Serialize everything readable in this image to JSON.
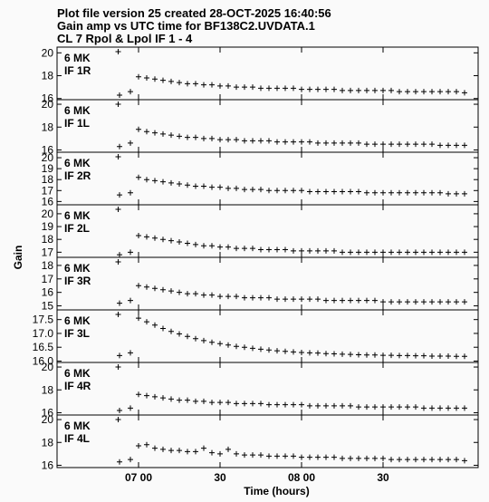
{
  "header": {
    "line1": "Plot file version 25  created 28-OCT-2025 16:40:56",
    "line2": "Gain amp vs UTC time for BF138C2.UVDATA.1",
    "line3": "CL 7  Rpol & Lpol  IF 1 - 4"
  },
  "chart_data": {
    "type": "scatter",
    "marker": "+",
    "xlabel": "Time (hours)",
    "ylabel": "Gain",
    "x_ticklabels": [
      "07 00",
      "30",
      "08 00",
      "30"
    ],
    "x_tick_minutes": [
      0,
      30,
      60,
      90
    ],
    "xlim_minutes": [
      -30,
      125
    ],
    "panels": [
      {
        "label": "IF 1R",
        "antenna": "6 MK",
        "ylim": [
          15.9,
          20.5
        ],
        "yticks": [
          16,
          18,
          20
        ],
        "x_min": [
          -7,
          -3,
          0,
          3,
          6,
          9,
          12,
          15,
          18,
          21,
          24,
          27,
          30,
          33,
          36,
          39,
          42,
          45,
          48,
          51,
          54,
          57,
          60,
          63,
          66,
          69,
          72,
          75,
          78,
          81,
          84,
          87,
          90,
          93,
          96,
          99,
          102,
          105,
          108,
          111,
          114,
          117,
          120
        ],
        "gain": [
          16.3,
          16.6,
          17.9,
          17.8,
          17.7,
          17.6,
          17.5,
          17.4,
          17.3,
          17.3,
          17.2,
          17.2,
          17.1,
          17.1,
          17.0,
          17.0,
          17.0,
          16.9,
          16.9,
          16.9,
          16.9,
          16.9,
          16.8,
          16.8,
          16.8,
          16.8,
          16.8,
          16.7,
          16.7,
          16.7,
          16.7,
          16.7,
          16.7,
          16.7,
          16.6,
          16.6,
          16.6,
          16.6,
          16.6,
          16.6,
          16.6,
          16.6,
          16.5
        ]
      },
      {
        "label": "IF 1L",
        "antenna": "6 MK",
        "ylim": [
          15.8,
          20.4
        ],
        "yticks": [
          16,
          18,
          20
        ],
        "x_min": [
          -7,
          -3,
          0,
          3,
          6,
          9,
          12,
          15,
          18,
          21,
          24,
          27,
          30,
          33,
          36,
          39,
          42,
          45,
          48,
          51,
          54,
          57,
          60,
          63,
          66,
          69,
          72,
          75,
          78,
          81,
          84,
          87,
          90,
          93,
          96,
          99,
          102,
          105,
          108,
          111,
          114,
          117,
          120
        ],
        "gain": [
          16.3,
          16.6,
          17.8,
          17.6,
          17.5,
          17.4,
          17.3,
          17.2,
          17.1,
          17.1,
          17.0,
          17.0,
          16.9,
          16.9,
          16.9,
          16.8,
          16.8,
          16.8,
          16.8,
          16.7,
          16.7,
          16.7,
          16.7,
          16.7,
          16.6,
          16.6,
          16.6,
          16.6,
          16.6,
          16.6,
          16.5,
          16.5,
          16.5,
          16.5,
          16.5,
          16.5,
          16.5,
          16.5,
          16.5,
          16.4,
          16.4,
          16.4,
          16.4
        ]
      },
      {
        "label": "IF 2R",
        "antenna": "6 MK",
        "ylim": [
          15.7,
          20.5
        ],
        "yticks": [
          16,
          17,
          18,
          19,
          20
        ],
        "x_min": [
          -7,
          -3,
          0,
          3,
          6,
          9,
          12,
          15,
          18,
          21,
          24,
          27,
          30,
          33,
          36,
          39,
          42,
          45,
          48,
          51,
          54,
          57,
          60,
          63,
          66,
          69,
          72,
          75,
          78,
          81,
          84,
          87,
          90,
          93,
          96,
          99,
          102,
          105,
          108,
          111,
          114,
          117,
          120
        ],
        "gain": [
          16.6,
          16.8,
          18.2,
          18.0,
          17.9,
          17.8,
          17.7,
          17.6,
          17.5,
          17.4,
          17.4,
          17.3,
          17.3,
          17.2,
          17.2,
          17.1,
          17.1,
          17.1,
          17.0,
          17.0,
          17.0,
          17.0,
          17.0,
          16.9,
          16.9,
          16.9,
          16.9,
          16.9,
          16.9,
          16.9,
          16.8,
          16.8,
          16.8,
          16.8,
          16.8,
          16.8,
          16.8,
          16.8,
          16.8,
          16.8,
          16.7,
          16.7,
          16.7
        ]
      },
      {
        "label": "IF 2L",
        "antenna": "6 MK",
        "ylim": [
          16.6,
          20.7
        ],
        "yticks": [
          17,
          18,
          19,
          20
        ],
        "x_min": [
          -7,
          -3,
          0,
          3,
          6,
          9,
          12,
          15,
          18,
          21,
          24,
          27,
          30,
          33,
          36,
          39,
          42,
          45,
          48,
          51,
          54,
          57,
          60,
          63,
          66,
          69,
          72,
          75,
          78,
          81,
          84,
          87,
          90,
          93,
          96,
          99,
          102,
          105,
          108,
          111,
          114,
          117,
          120
        ],
        "gain": [
          16.8,
          17.0,
          18.3,
          18.2,
          18.1,
          18.0,
          17.9,
          17.8,
          17.7,
          17.6,
          17.5,
          17.5,
          17.4,
          17.4,
          17.3,
          17.3,
          17.3,
          17.2,
          17.2,
          17.2,
          17.2,
          17.1,
          17.1,
          17.1,
          17.1,
          17.1,
          17.1,
          17.0,
          17.0,
          17.0,
          17.0,
          17.0,
          17.0,
          17.0,
          17.0,
          17.0,
          17.0,
          17.0,
          17.0,
          17.0,
          17.0,
          17.0,
          17.0
        ]
      },
      {
        "label": "IF 3R",
        "antenna": "6 MK",
        "ylim": [
          14.7,
          18.6
        ],
        "yticks": [
          15,
          16,
          17,
          18
        ],
        "x_min": [
          -7,
          -3,
          0,
          3,
          6,
          9,
          12,
          15,
          18,
          21,
          24,
          27,
          30,
          33,
          36,
          39,
          42,
          45,
          48,
          51,
          54,
          57,
          60,
          63,
          66,
          69,
          72,
          75,
          78,
          81,
          84,
          87,
          90,
          93,
          96,
          99,
          102,
          105,
          108,
          111,
          114,
          117,
          120
        ],
        "gain": [
          15.2,
          15.4,
          16.5,
          16.4,
          16.3,
          16.2,
          16.1,
          16.0,
          15.9,
          15.9,
          15.8,
          15.8,
          15.7,
          15.7,
          15.7,
          15.6,
          15.6,
          15.6,
          15.6,
          15.5,
          15.5,
          15.5,
          15.5,
          15.5,
          15.5,
          15.4,
          15.4,
          15.4,
          15.4,
          15.4,
          15.4,
          15.4,
          15.3,
          15.3,
          15.3,
          15.3,
          15.3,
          15.3,
          15.3,
          15.3,
          15.3,
          15.3,
          15.3
        ]
      },
      {
        "label": "IF 3L",
        "antenna": "6 MK",
        "ylim": [
          15.95,
          17.85
        ],
        "yticks": [
          16.0,
          16.5,
          17.0,
          17.5
        ],
        "x_min": [
          -7,
          -3,
          0,
          3,
          6,
          9,
          12,
          15,
          18,
          21,
          24,
          27,
          30,
          33,
          36,
          39,
          42,
          45,
          48,
          51,
          54,
          57,
          60,
          63,
          66,
          69,
          72,
          75,
          78,
          81,
          84,
          87,
          90,
          93,
          96,
          99,
          102,
          105,
          108,
          111,
          114,
          117,
          120
        ],
        "gain": [
          16.2,
          16.3,
          17.55,
          17.42,
          17.3,
          17.18,
          17.07,
          16.98,
          16.89,
          16.81,
          16.74,
          16.68,
          16.63,
          16.58,
          16.53,
          16.5,
          16.46,
          16.43,
          16.4,
          16.37,
          16.35,
          16.33,
          16.31,
          16.3,
          16.29,
          16.27,
          16.26,
          16.25,
          16.24,
          16.23,
          16.22,
          16.22,
          16.21,
          16.21,
          16.2,
          16.2,
          16.19,
          16.19,
          16.18,
          16.18,
          16.18,
          16.17,
          16.17
        ]
      },
      {
        "label": "IF 4R",
        "antenna": "6 MK",
        "ylim": [
          15.8,
          20.4
        ],
        "yticks": [
          16,
          18,
          20
        ],
        "x_min": [
          -7,
          -3,
          0,
          3,
          6,
          9,
          12,
          15,
          18,
          21,
          24,
          27,
          30,
          33,
          36,
          39,
          42,
          45,
          48,
          51,
          54,
          57,
          60,
          63,
          66,
          69,
          72,
          75,
          78,
          81,
          84,
          87,
          90,
          93,
          96,
          99,
          102,
          105,
          108,
          111,
          114,
          117,
          120
        ],
        "gain": [
          16.2,
          16.4,
          17.6,
          17.5,
          17.4,
          17.3,
          17.2,
          17.1,
          17.1,
          17.0,
          17.0,
          16.9,
          16.9,
          16.9,
          16.8,
          16.8,
          16.8,
          16.8,
          16.7,
          16.7,
          16.7,
          16.7,
          16.7,
          16.6,
          16.6,
          16.6,
          16.6,
          16.6,
          16.6,
          16.5,
          16.5,
          16.5,
          16.5,
          16.5,
          16.5,
          16.5,
          16.5,
          16.4,
          16.4,
          16.4,
          16.4,
          16.4,
          16.4
        ]
      },
      {
        "label": "IF 4L",
        "antenna": "6 MK",
        "ylim": [
          15.8,
          20.4
        ],
        "yticks": [
          16,
          18,
          20
        ],
        "x_min": [
          -7,
          -3,
          0,
          3,
          6,
          9,
          12,
          15,
          18,
          21,
          24,
          27,
          30,
          33,
          36,
          39,
          42,
          45,
          48,
          51,
          54,
          57,
          60,
          63,
          66,
          69,
          72,
          75,
          78,
          81,
          84,
          87,
          90,
          93,
          96,
          99,
          102,
          105,
          108,
          111,
          114,
          117,
          120
        ],
        "gain": [
          16.3,
          16.5,
          17.7,
          17.8,
          17.5,
          17.4,
          17.3,
          17.3,
          17.2,
          17.2,
          17.5,
          17.1,
          17.0,
          17.4,
          17.0,
          16.9,
          16.9,
          16.9,
          16.8,
          16.8,
          16.8,
          16.8,
          16.7,
          16.7,
          16.7,
          16.7,
          16.7,
          16.6,
          16.6,
          16.6,
          16.6,
          16.6,
          16.6,
          16.5,
          16.5,
          16.5,
          16.5,
          16.5,
          16.5,
          16.5,
          16.5,
          16.5,
          16.4
        ]
      }
    ]
  }
}
